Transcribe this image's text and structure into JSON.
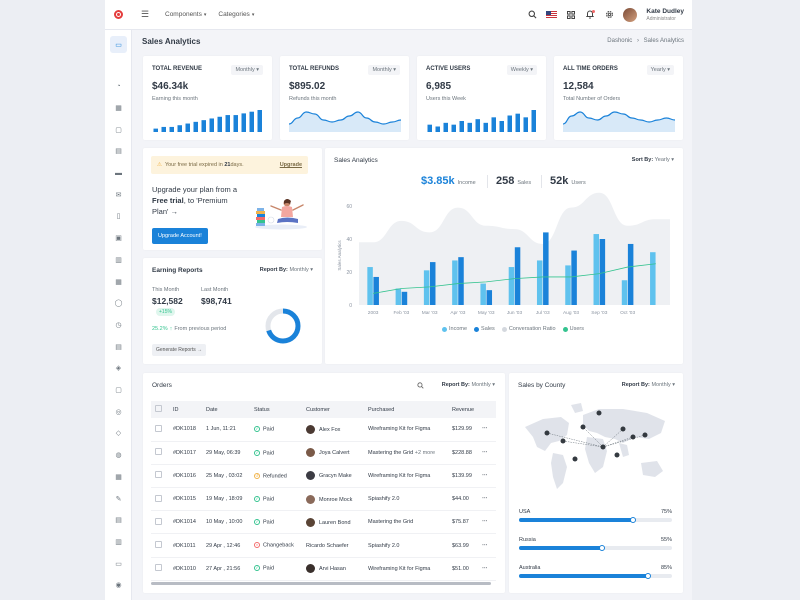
{
  "topbar": {
    "menu": [
      "Components",
      "Categories"
    ],
    "user_name": "Kate Dudley",
    "user_role": "Administrator"
  },
  "sidebar_icons": [
    "monitor-icon",
    "pie-icon",
    "calendar-icon",
    "chat-icon",
    "clipboard-icon",
    "folder-icon",
    "mail-icon",
    "book-icon",
    "image-icon",
    "briefcase-icon",
    "layout-icon",
    "user-icon",
    "clock-icon",
    "file-icon",
    "tag-icon",
    "document-icon",
    "award-icon",
    "box-icon",
    "globe-icon",
    "grid-icon",
    "pen-icon",
    "database-icon",
    "bar-chart-icon",
    "archive-icon",
    "map-pin-icon",
    "share-icon"
  ],
  "page": {
    "title": "Sales Analytics",
    "crumb_home": "Dashonic",
    "crumb_sep": "›",
    "crumb_current": "Sales Analytics"
  },
  "stats": [
    {
      "title": "Total Revenue",
      "period": "Monthly",
      "value": "$46.34k",
      "sub": "Earning this month",
      "type": "bars",
      "spark": [
        2,
        3,
        3,
        4,
        5,
        6,
        7,
        8,
        9,
        10,
        10,
        11,
        12,
        13
      ]
    },
    {
      "title": "Total Refunds",
      "period": "Monthly",
      "value": "$895.02",
      "sub": "Refunds this month",
      "type": "area",
      "spark": [
        3,
        6,
        9,
        8,
        5,
        4,
        5,
        7,
        9,
        6,
        4,
        3,
        4,
        5
      ]
    },
    {
      "title": "Active Users",
      "period": "Weekly",
      "value": "6,985",
      "sub": "Users this Week",
      "type": "bars",
      "spark": [
        4,
        3,
        5,
        4,
        6,
        5,
        7,
        5,
        8,
        6,
        9,
        10,
        8,
        12
      ]
    },
    {
      "title": "All Time Orders",
      "period": "Yearly",
      "value": "12,584",
      "sub": "Total Number of Orders",
      "type": "area",
      "spark": [
        3,
        7,
        9,
        6,
        5,
        7,
        9,
        8,
        6,
        5,
        4,
        5,
        6,
        5
      ]
    }
  ],
  "colors": {
    "primary": "#1a82d9",
    "light_blue": "#5fc2ee",
    "green": "#34c38f",
    "danger": "#f46a6a",
    "warning": "#f1b44c"
  },
  "upgrade": {
    "trial_pre": "Your free trial expired in ",
    "trial_days": "21",
    "trial_post": " days.",
    "trial_link": "Upgrade",
    "line1": "Upgrade your plan from a",
    "line2_bold": "Free trial",
    "line2_rest": ", to 'Premium",
    "line3": "Plan'",
    "line3_arrow": "→",
    "button": "Upgrade Account!"
  },
  "earning": {
    "title": "Earning Reports",
    "report_label": "Report By:",
    "report_value": "Monthly",
    "this_month_label": "This Month",
    "this_month_value": "$12,582",
    "badge": "+15%",
    "last_month_label": "Last Month",
    "last_month_value": "$98,741",
    "change": "25.2%",
    "change_arrow": "↑",
    "change_text": "From previous period",
    "button": "Generate Reports",
    "button_arrow": "→",
    "donut_fraction": 0.7
  },
  "sales_analytics": {
    "title": "Sales Analytics",
    "sort_label": "Sort By:",
    "sort_value": "Yearly",
    "income_value": "$3.85k",
    "income_label": "Income",
    "sales_value": "258",
    "sales_label": "Sales",
    "users_value": "52k",
    "users_label": "Users"
  },
  "chart_data": {
    "type": "bar",
    "ylabel": "Sales Analytics",
    "ylim": [
      0,
      60
    ],
    "yticks": [
      0,
      20,
      40,
      60,
      80
    ],
    "x_ticks": [
      "2003",
      "Feb '03",
      "Mar '03",
      "Apr '03",
      "May '03",
      "Jun '03",
      "Jul '03",
      "Aug '03",
      "Sep '03",
      "Oct '03"
    ],
    "categories": [
      "2003",
      "Feb '03",
      "Mar '03",
      "Apr '03",
      "May '03",
      "Jun '03",
      "Jul '03",
      "Aug '03",
      "Sep '03",
      "Oct '03",
      "Nov '03"
    ],
    "series": [
      {
        "name": "Income",
        "type": "bar",
        "values": [
          23,
          10,
          21,
          27,
          13,
          23,
          27,
          24,
          43,
          15,
          32
        ]
      },
      {
        "name": "Sales",
        "type": "bar",
        "values": [
          17,
          8,
          26,
          29,
          9,
          35,
          44,
          33,
          40,
          37,
          0
        ]
      },
      {
        "name": "Conversation Ratio",
        "type": "area",
        "values": [
          38,
          51,
          44,
          59,
          48,
          46,
          37,
          59,
          68,
          48,
          52
        ]
      },
      {
        "name": "Users",
        "type": "line",
        "values": [
          7,
          10,
          11,
          13,
          14,
          16,
          17,
          17,
          19,
          23,
          25
        ]
      }
    ]
  },
  "orders": {
    "title": "Orders",
    "report_label": "Report By:",
    "report_value": "Monthly",
    "columns": [
      "ID",
      "Date",
      "Status",
      "Customer",
      "Purchased",
      "Revenue"
    ],
    "rows": [
      {
        "id": "#DK1018",
        "date": "1 Jun, 11:21",
        "status": "Paid",
        "customer": "Alex Fox",
        "purchased": "Wireframing Kit for Figma",
        "extra": "",
        "revenue": "$129.99"
      },
      {
        "id": "#DK1017",
        "date": "29 May, 06:39",
        "status": "Paid",
        "customer": "Joya Calvert",
        "purchased": "Mastering the Grid",
        "extra": "+2 more",
        "revenue": "$228.88"
      },
      {
        "id": "#DK1016",
        "date": "25 May , 03:02",
        "status": "Refunded",
        "customer": "Gracyn Make",
        "purchased": "Wireframing Kit for Figma",
        "extra": "",
        "revenue": "$139.99"
      },
      {
        "id": "#DK1015",
        "date": "19 May , 18:09",
        "status": "Paid",
        "customer": "Monroe Mock",
        "purchased": "Spiashify 2.0",
        "extra": "",
        "revenue": "$44.00"
      },
      {
        "id": "#DK1014",
        "date": "10 May , 10:00",
        "status": "Paid",
        "customer": "Lauren Bond",
        "purchased": "Mastering the Grid",
        "extra": "",
        "revenue": "$75.87"
      },
      {
        "id": "#DK1011",
        "date": "29 Apr , 12:46",
        "status": "Changeback",
        "customer": "Ricardo Schaefer",
        "purchased": "Spiashify 2.0",
        "extra": "",
        "revenue": "$63.99"
      },
      {
        "id": "#DK1010",
        "date": "27 Apr , 21:56",
        "status": "Paid",
        "customer": "Arvi Hasan",
        "purchased": "Wireframing Kit for Figma",
        "extra": "",
        "revenue": "$51.00"
      }
    ]
  },
  "county": {
    "title": "Sales by County",
    "report_label": "Report By:",
    "report_value": "Monthly",
    "items": [
      {
        "name": "USA",
        "percent": "75%",
        "value": 0.75
      },
      {
        "name": "Russia",
        "percent": "55%",
        "value": 0.55
      },
      {
        "name": "Australia",
        "percent": "85%",
        "value": 0.85
      }
    ]
  }
}
